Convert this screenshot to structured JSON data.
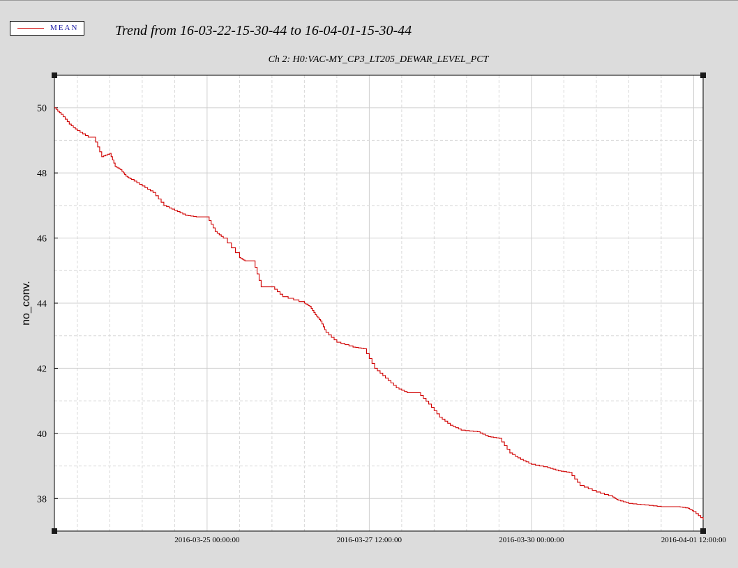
{
  "legend": {
    "label": "MEAN",
    "color": "#d00000"
  },
  "chart_data": {
    "type": "line",
    "title": "Trend from 16-03-22-15-30-44 to 16-04-01-15-30-44",
    "subtitle": "Ch 2: H0:VAC-MY_CP3_LT205_DEWAR_LEVEL_PCT",
    "xlabel": "",
    "ylabel": "no_conv.",
    "xlim": [
      "2016-03-22 15:30:44",
      "2016-04-01 15:30:44"
    ],
    "ylim": [
      37.0,
      51.0
    ],
    "x_ticks": [
      "2016-03-25 00:00:00",
      "2016-03-27 12:00:00",
      "2016-03-30 00:00:00",
      "2016-04-01 12:00:00"
    ],
    "y_ticks": [
      38,
      40,
      42,
      44,
      46,
      48,
      50
    ],
    "grid": true,
    "legend_position": "top-left",
    "series": [
      {
        "name": "MEAN",
        "color": "#d00000",
        "x": [
          "2016-03-22 15:30",
          "2016-03-22 18:00",
          "2016-03-22 21:00",
          "2016-03-23 00:00",
          "2016-03-23 04:00",
          "2016-03-23 06:00",
          "2016-03-23 09:00",
          "2016-03-23 12:00",
          "2016-03-23 14:00",
          "2016-03-23 16:00",
          "2016-03-23 18:00",
          "2016-03-23 20:00",
          "2016-03-24 00:00",
          "2016-03-24 04:00",
          "2016-03-24 08:00",
          "2016-03-24 12:00",
          "2016-03-24 16:00",
          "2016-03-24 20:00",
          "2016-03-25 00:00",
          "2016-03-25 03:00",
          "2016-03-25 06:00",
          "2016-03-25 12:00",
          "2016-03-25 14:00",
          "2016-03-25 17:00",
          "2016-03-25 20:00",
          "2016-03-26 00:00",
          "2016-03-26 04:00",
          "2016-03-26 12:00",
          "2016-03-26 14:00",
          "2016-03-26 16:00",
          "2016-03-26 18:00",
          "2016-03-26 20:00",
          "2016-03-27 00:00",
          "2016-03-27 06:00",
          "2016-03-27 10:00",
          "2016-03-27 14:00",
          "2016-03-27 18:00",
          "2016-03-27 22:00",
          "2016-03-28 02:00",
          "2016-03-28 06:00",
          "2016-03-28 10:00",
          "2016-03-28 14:00",
          "2016-03-28 18:00",
          "2016-03-28 22:00",
          "2016-03-29 04:00",
          "2016-03-29 08:00",
          "2016-03-29 12:00",
          "2016-03-29 16:00",
          "2016-03-29 20:00",
          "2016-03-30 00:00",
          "2016-03-30 06:00",
          "2016-03-30 10:00",
          "2016-03-30 14:00",
          "2016-03-30 18:00",
          "2016-03-31 00:00",
          "2016-03-31 06:00",
          "2016-03-31 08:00",
          "2016-03-31 12:00",
          "2016-03-31 18:00",
          "2016-04-01 00:00",
          "2016-04-01 06:00",
          "2016-04-01 10:00",
          "2016-04-01 12:00",
          "2016-04-01 15:30"
        ],
        "y": [
          50.0,
          49.8,
          49.5,
          49.3,
          49.1,
          49.1,
          48.5,
          48.6,
          48.2,
          48.1,
          47.9,
          47.8,
          47.6,
          47.4,
          47.0,
          46.85,
          46.7,
          46.65,
          46.65,
          46.2,
          46.0,
          45.4,
          45.3,
          45.3,
          44.5,
          44.5,
          44.2,
          44.0,
          43.9,
          43.65,
          43.45,
          43.1,
          42.8,
          42.65,
          42.6,
          42.0,
          41.7,
          41.4,
          41.25,
          41.25,
          40.9,
          40.5,
          40.25,
          40.1,
          40.05,
          39.9,
          39.85,
          39.4,
          39.2,
          39.05,
          38.95,
          38.85,
          38.8,
          38.4,
          38.2,
          38.05,
          37.95,
          37.85,
          37.8,
          37.75,
          37.75,
          37.7,
          37.6,
          37.35
        ]
      }
    ]
  }
}
